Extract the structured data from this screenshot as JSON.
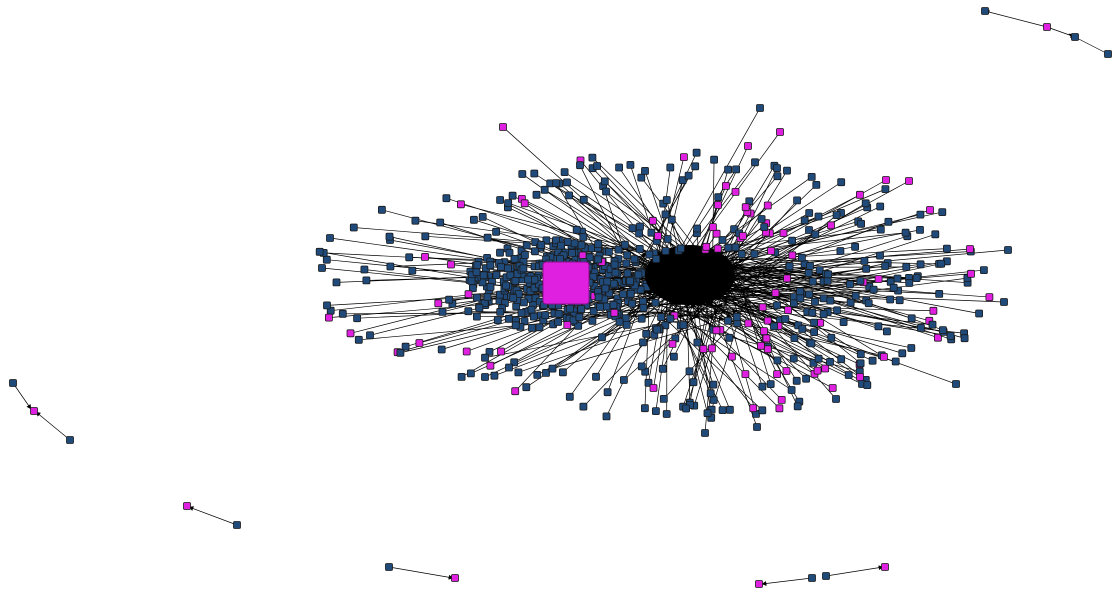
{
  "diagram": {
    "type": "directed-network-graph",
    "node_shape": "square",
    "edges_have_arrowheads": true,
    "layout": "force-directed",
    "colors": {
      "background": "#ffffff",
      "node_blue": "#1f4a7a",
      "node_magenta": "#e020e0",
      "edge": "#000000",
      "node_outline": "#1a1a1a"
    },
    "node_types": [
      "blue",
      "magenta"
    ],
    "components": [
      {
        "name": "main-cluster",
        "description_type": "dense core with radiating spokes"
      },
      {
        "name": "top-right-chain",
        "node_colors": [
          "blue",
          "magenta",
          "blue",
          "blue"
        ]
      },
      {
        "name": "left-chain",
        "node_colors": [
          "blue",
          "magenta",
          "blue"
        ]
      },
      {
        "name": "bottom-left-pair",
        "node_colors": [
          "magenta",
          "blue"
        ]
      },
      {
        "name": "bottom-center-pair",
        "node_colors": [
          "blue",
          "magenta"
        ]
      },
      {
        "name": "bottom-right-chain",
        "node_colors": [
          "magenta",
          "blue",
          "blue",
          "magenta"
        ]
      }
    ]
  }
}
